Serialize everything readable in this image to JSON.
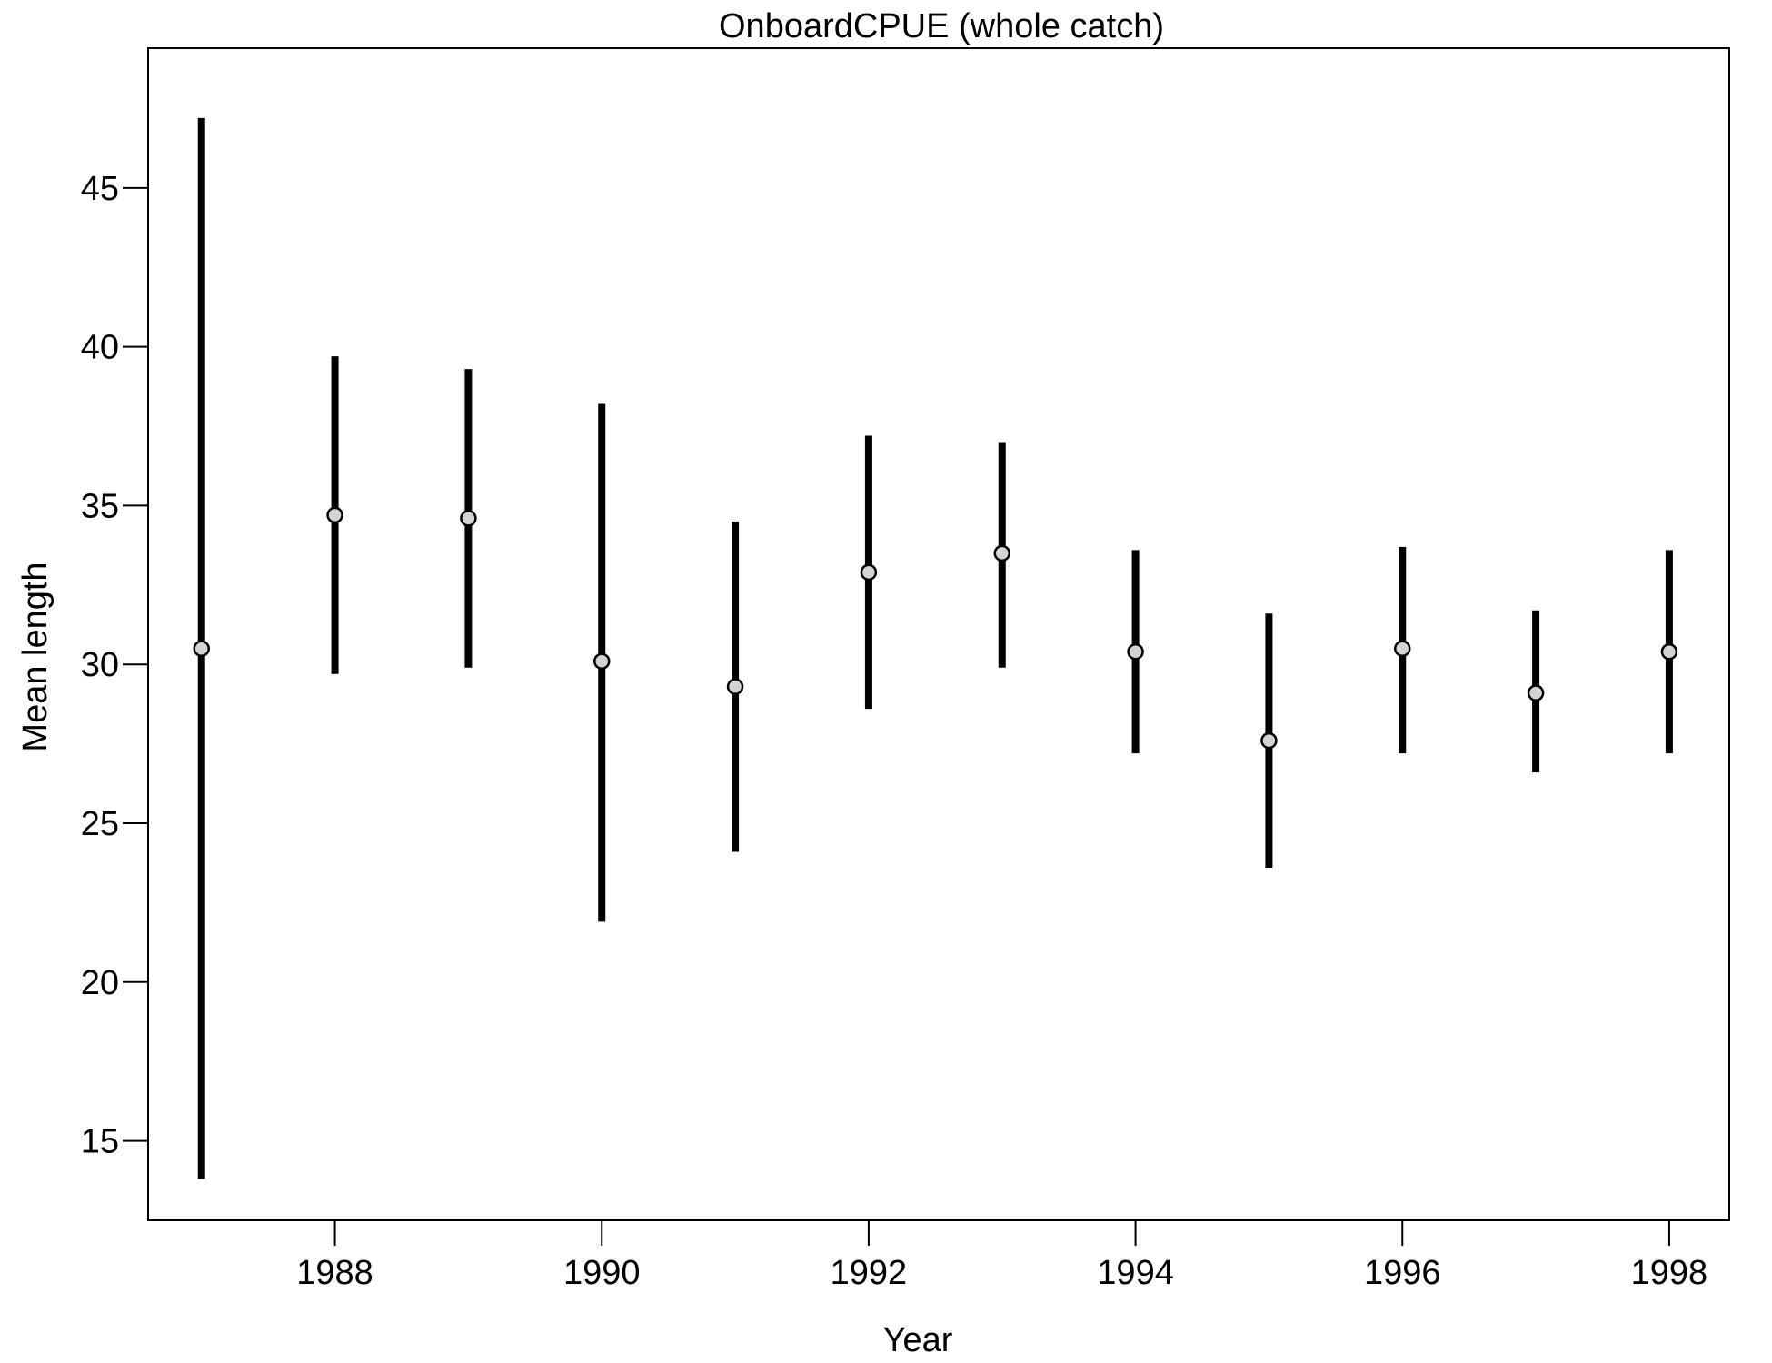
{
  "chart_data": {
    "type": "scatter",
    "title": "OnboardCPUE (whole catch)",
    "xlabel": "Year",
    "ylabel": "Mean length",
    "xlim": [
      1986.6,
      1998.45
    ],
    "ylim": [
      12.5,
      49.4
    ],
    "xticks": [
      1988,
      1990,
      1992,
      1994,
      1996,
      1998
    ],
    "yticks": [
      15,
      20,
      25,
      30,
      35,
      40,
      45
    ],
    "grid": false,
    "legend": "none",
    "series": [
      {
        "points": [
          {
            "x": 1987,
            "y": 30.5,
            "lower": 13.8,
            "upper": 47.2
          },
          {
            "x": 1988,
            "y": 34.7,
            "lower": 29.7,
            "upper": 39.7
          },
          {
            "x": 1989,
            "y": 34.6,
            "lower": 29.9,
            "upper": 39.3
          },
          {
            "x": 1990,
            "y": 30.1,
            "lower": 21.9,
            "upper": 38.2
          },
          {
            "x": 1991,
            "y": 29.3,
            "lower": 24.1,
            "upper": 34.5
          },
          {
            "x": 1992,
            "y": 32.9,
            "lower": 28.6,
            "upper": 37.2
          },
          {
            "x": 1993,
            "y": 33.5,
            "lower": 29.9,
            "upper": 37.0
          },
          {
            "x": 1994,
            "y": 30.4,
            "lower": 27.2,
            "upper": 33.6
          },
          {
            "x": 1995,
            "y": 27.6,
            "lower": 23.6,
            "upper": 31.6
          },
          {
            "x": 1996,
            "y": 30.5,
            "lower": 27.2,
            "upper": 33.7
          },
          {
            "x": 1997,
            "y": 29.1,
            "lower": 26.6,
            "upper": 31.7
          },
          {
            "x": 1998,
            "y": 30.4,
            "lower": 27.2,
            "upper": 33.6
          }
        ]
      }
    ],
    "colors": {
      "bar": "#000000",
      "point_fill": "#d3d3d3",
      "point_stroke": "#000000"
    }
  }
}
